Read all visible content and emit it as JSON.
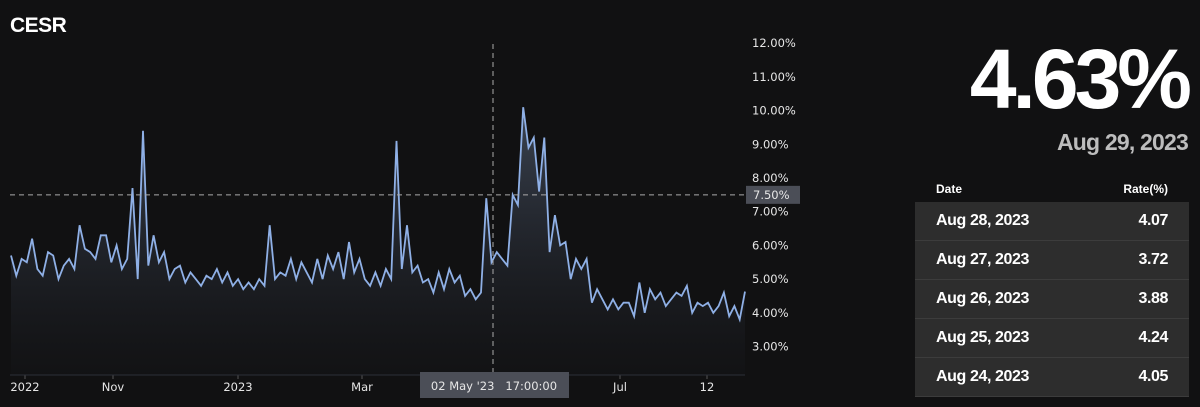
{
  "title": "CESR",
  "current": {
    "value": "4.63%",
    "date": "Aug 29, 2023"
  },
  "table": {
    "headers": [
      "Date",
      "Rate(%)"
    ],
    "rows": [
      {
        "date": "Aug 28, 2023",
        "rate": "4.07"
      },
      {
        "date": "Aug 27, 2023",
        "rate": "3.72"
      },
      {
        "date": "Aug 26, 2023",
        "rate": "3.88"
      },
      {
        "date": "Aug 25, 2023",
        "rate": "4.24"
      },
      {
        "date": "Aug 24, 2023",
        "rate": "4.05"
      }
    ]
  },
  "chart_data": {
    "type": "area",
    "title": "CESR",
    "ylim": [
      2.3,
      12
    ],
    "yticks": [
      "3.00%",
      "4.00%",
      "5.00%",
      "6.00%",
      "7.00%",
      "8.00%",
      "9.00%",
      "10.00%",
      "11.00%",
      "12.00%"
    ],
    "xticks": [
      "2022",
      "Nov",
      "2023",
      "Mar",
      "Jul",
      "12"
    ],
    "crosshair": {
      "x_label": "02 May '23   17:00:00",
      "y_label": "7.50%",
      "y_value": 7.5
    },
    "line_color": "#8fb0e6",
    "values": [
      5.7,
      5.1,
      5.6,
      5.5,
      6.2,
      5.3,
      5.1,
      5.8,
      5.7,
      5.0,
      5.4,
      5.6,
      5.3,
      6.6,
      5.9,
      5.8,
      5.6,
      6.3,
      6.3,
      5.5,
      6.0,
      5.3,
      5.6,
      7.7,
      5.0,
      9.4,
      5.4,
      6.3,
      5.5,
      5.8,
      5.0,
      5.3,
      5.4,
      4.9,
      5.2,
      5.0,
      4.8,
      5.1,
      5.0,
      5.3,
      4.9,
      5.2,
      4.8,
      5.0,
      4.7,
      4.9,
      4.7,
      5.0,
      4.8,
      6.6,
      5.0,
      5.2,
      5.1,
      5.6,
      5.0,
      5.5,
      5.2,
      4.9,
      5.6,
      5.0,
      5.7,
      5.3,
      5.8,
      5.0,
      6.1,
      5.2,
      5.6,
      5.0,
      4.8,
      5.2,
      4.8,
      5.3,
      5.0,
      9.1,
      5.3,
      6.6,
      5.2,
      5.4,
      4.9,
      5.0,
      4.6,
      5.2,
      4.7,
      5.3,
      4.9,
      5.1,
      4.5,
      4.7,
      4.4,
      4.6,
      7.4,
      5.5,
      5.8,
      5.6,
      5.4,
      7.5,
      7.2,
      10.1,
      8.9,
      9.2,
      7.6,
      9.2,
      5.8,
      6.9,
      6.0,
      6.1,
      5.0,
      5.6,
      5.3,
      5.6,
      4.3,
      4.7,
      4.4,
      4.1,
      4.4,
      4.1,
      4.3,
      4.3,
      3.9,
      4.9,
      4.0,
      4.7,
      4.4,
      4.6,
      4.2,
      4.4,
      4.6,
      4.5,
      4.8,
      4.0,
      4.3,
      4.2,
      4.3,
      4.0,
      4.2,
      4.6,
      3.9,
      4.2,
      3.8,
      4.63
    ]
  }
}
